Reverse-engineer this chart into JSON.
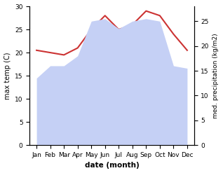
{
  "months": [
    "Jan",
    "Feb",
    "Mar",
    "Apr",
    "May",
    "Jun",
    "Jul",
    "Aug",
    "Sep",
    "Oct",
    "Nov",
    "Dec"
  ],
  "temp": [
    20.5,
    20.0,
    19.5,
    21.0,
    25.0,
    28.0,
    25.0,
    26.0,
    29.0,
    28.0,
    24.0,
    20.5
  ],
  "precip": [
    13.5,
    16.0,
    16.0,
    18.0,
    25.0,
    25.5,
    23.5,
    25.0,
    25.5,
    25.0,
    16.0,
    15.5
  ],
  "temp_color": "#cc3333",
  "precip_fill_color": "#c5d0f5",
  "temp_ylim": [
    0,
    30
  ],
  "precip_ylim": [
    0,
    28.0
  ],
  "xlabel": "date (month)",
  "ylabel_left": "max temp (C)",
  "ylabel_right": "med. precipitation (kg/m2)",
  "temp_yticks": [
    0,
    5,
    10,
    15,
    20,
    25,
    30
  ],
  "precip_yticks": [
    0,
    5,
    10,
    15,
    20,
    25
  ],
  "background_color": "#ffffff"
}
